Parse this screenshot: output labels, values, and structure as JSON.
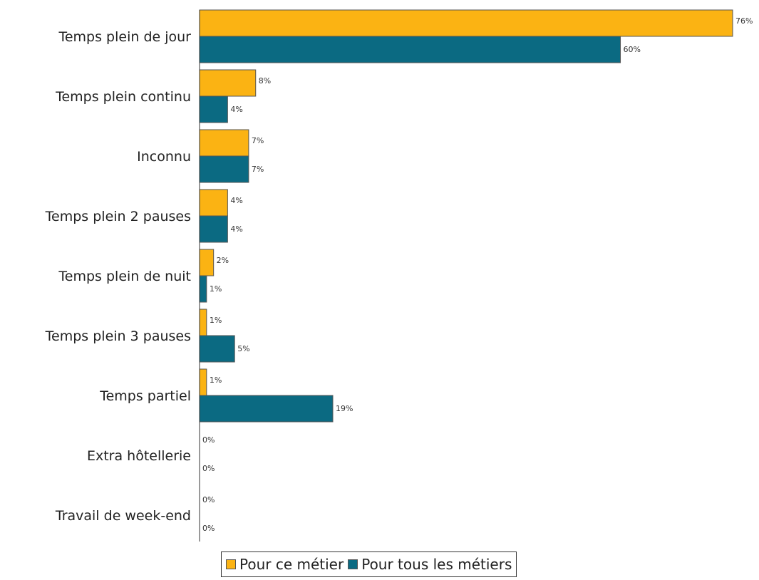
{
  "chart_data": {
    "type": "bar",
    "orientation": "horizontal",
    "categories": [
      "Temps plein de jour",
      "Temps plein continu",
      "Inconnu",
      "Temps plein 2 pauses",
      "Temps plein de nuit",
      "Temps plein 3 pauses",
      "Temps partiel",
      "Extra hôtellerie",
      "Travail de week-end"
    ],
    "series": [
      {
        "name": "Pour ce métier",
        "color": "#fbb313",
        "values": [
          76,
          8,
          7,
          4,
          2,
          1,
          1,
          0,
          0
        ],
        "labels": [
          "76%",
          "8%",
          "7%",
          "4%",
          "2%",
          "1%",
          "1%",
          "0%",
          "0%"
        ]
      },
      {
        "name": "Pour tous les métiers",
        "color": "#0b6a82",
        "values": [
          60,
          4,
          7,
          4,
          1,
          5,
          19,
          0,
          0
        ],
        "labels": [
          "60%",
          "4%",
          "7%",
          "4%",
          "1%",
          "5%",
          "19%",
          "0%",
          "0%"
        ]
      }
    ],
    "xlim": [
      0,
      76
    ],
    "grid": false,
    "legend_position": "bottom"
  }
}
